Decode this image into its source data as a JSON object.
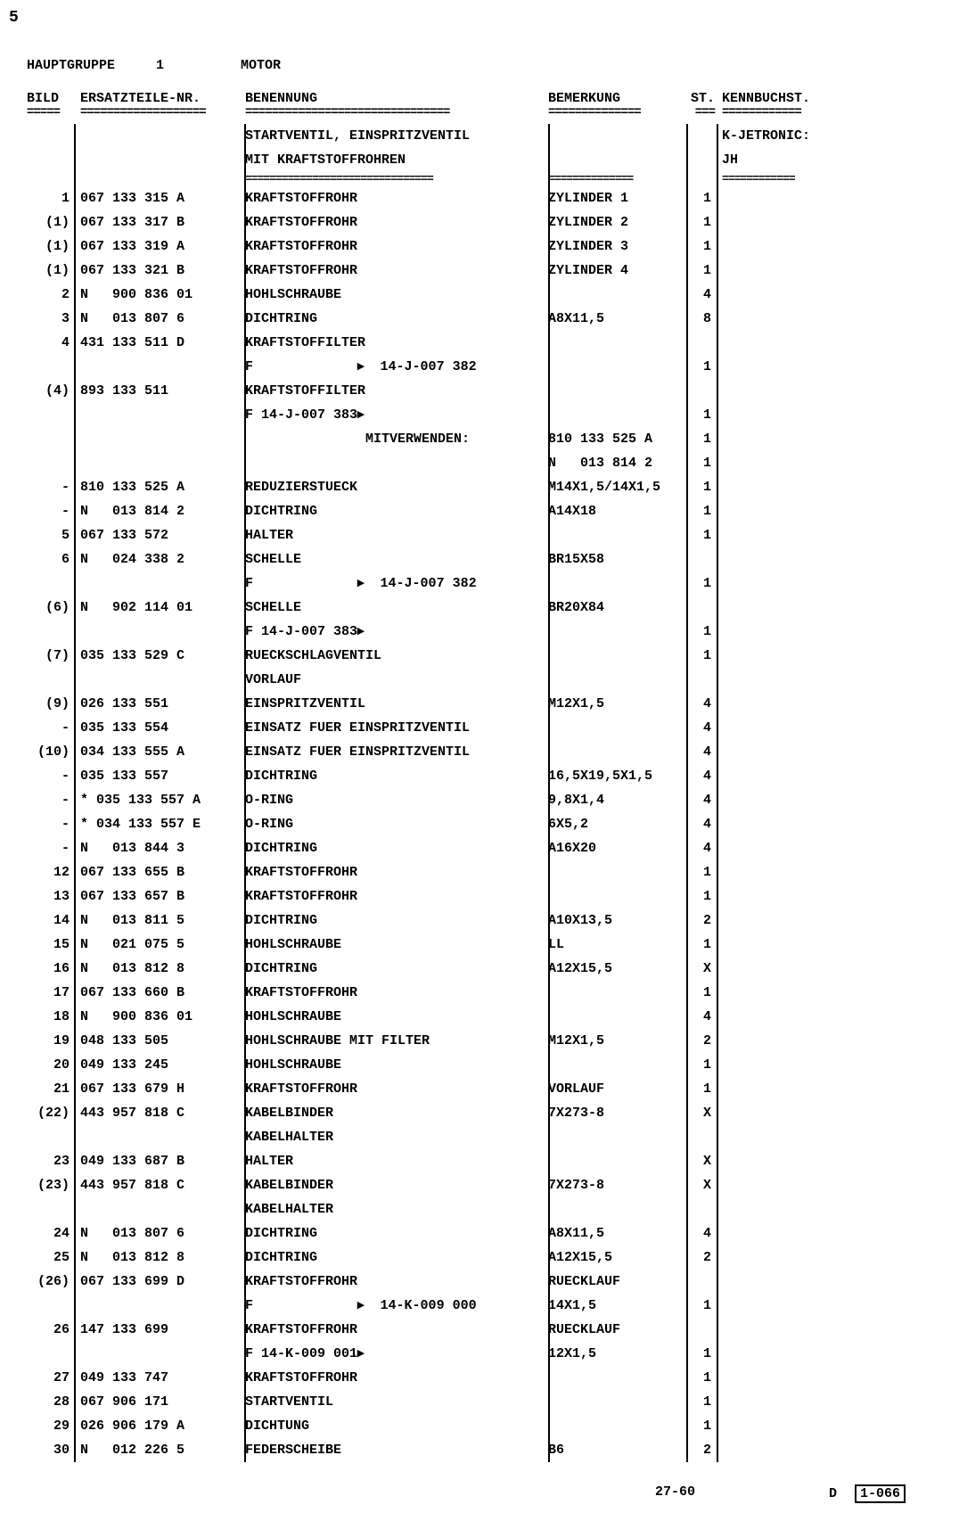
{
  "page_num_top": "5",
  "header": {
    "hauptgruppe_label": "HAUPTGRUPPE",
    "hauptgruppe_num": "1",
    "motor_label": "MOTOR"
  },
  "columns": {
    "bild": "BILD",
    "ersatz": "ERSATZTEILE-NR.",
    "benennung": "BENENNUNG",
    "bemerkung": "BEMERKUNG",
    "st": "ST.",
    "kennbuchst": "KENNBUCHST."
  },
  "section_header": {
    "line1": "STARTVENTIL, EINSPRITZVENTIL",
    "line2": "MIT KRAFTSTOFFROHREN",
    "kenn1": "K-JETRONIC:",
    "kenn2": "JH"
  },
  "rows": [
    {
      "bild": "1",
      "ersatz": "067 133 315 A",
      "benennung": "KRAFTSTOFFROHR",
      "bemerkung": "ZYLINDER 1",
      "st": "1",
      "kenn": ""
    },
    {
      "bild": "(1)",
      "ersatz": "067 133 317 B",
      "benennung": "KRAFTSTOFFROHR",
      "bemerkung": "ZYLINDER 2",
      "st": "1",
      "kenn": ""
    },
    {
      "bild": "(1)",
      "ersatz": "067 133 319 A",
      "benennung": "KRAFTSTOFFROHR",
      "bemerkung": "ZYLINDER 3",
      "st": "1",
      "kenn": ""
    },
    {
      "bild": "(1)",
      "ersatz": "067 133 321 B",
      "benennung": "KRAFTSTOFFROHR",
      "bemerkung": "ZYLINDER 4",
      "st": "1",
      "kenn": ""
    },
    {
      "bild": "2",
      "ersatz": "N   900 836 01",
      "benennung": "HOHLSCHRAUBE",
      "bemerkung": "",
      "st": "4",
      "kenn": ""
    },
    {
      "bild": "3",
      "ersatz": "N   013 807 6",
      "benennung": "DICHTRING",
      "bemerkung": "A8X11,5",
      "st": "8",
      "kenn": ""
    },
    {
      "bild": "4",
      "ersatz": "431 133 511 D",
      "benennung": "KRAFTSTOFFILTER",
      "bemerkung": "",
      "st": "",
      "kenn": ""
    },
    {
      "bild": "",
      "ersatz": "",
      "benennung": "F             ▸  14-J-007 382",
      "bemerkung": "",
      "st": "1",
      "kenn": ""
    },
    {
      "bild": "(4)",
      "ersatz": "893 133 511",
      "benennung": "KRAFTSTOFFILTER",
      "bemerkung": "",
      "st": "",
      "kenn": ""
    },
    {
      "bild": "",
      "ersatz": "",
      "benennung": "F 14-J-007 383▸",
      "bemerkung": "",
      "st": "1",
      "kenn": ""
    },
    {
      "bild": "",
      "ersatz": "",
      "benennung": "               MITVERWENDEN:",
      "bemerkung": "810 133 525 A",
      "st": "1",
      "kenn": ""
    },
    {
      "bild": "",
      "ersatz": "",
      "benennung": "",
      "bemerkung": "N   013 814 2",
      "st": "1",
      "kenn": ""
    },
    {
      "bild": "-",
      "ersatz": "810 133 525 A",
      "benennung": "REDUZIERSTUECK",
      "bemerkung": "M14X1,5/14X1,5",
      "st": "1",
      "kenn": ""
    },
    {
      "bild": "-",
      "ersatz": "N   013 814 2",
      "benennung": "DICHTRING",
      "bemerkung": "A14X18",
      "st": "1",
      "kenn": ""
    },
    {
      "bild": "5",
      "ersatz": "067 133 572",
      "benennung": "HALTER",
      "bemerkung": "",
      "st": "1",
      "kenn": ""
    },
    {
      "bild": "6",
      "ersatz": "N   024 338 2",
      "benennung": "SCHELLE",
      "bemerkung": "BR15X58",
      "st": "",
      "kenn": ""
    },
    {
      "bild": "",
      "ersatz": "",
      "benennung": "F             ▸  14-J-007 382",
      "bemerkung": "",
      "st": "1",
      "kenn": ""
    },
    {
      "bild": "(6)",
      "ersatz": "N   902 114 01",
      "benennung": "SCHELLE",
      "bemerkung": "BR20X84",
      "st": "",
      "kenn": ""
    },
    {
      "bild": "",
      "ersatz": "",
      "benennung": "F 14-J-007 383▸",
      "bemerkung": "",
      "st": "1",
      "kenn": ""
    },
    {
      "bild": "(7)",
      "ersatz": "035 133 529 C",
      "benennung": "RUECKSCHLAGVENTIL",
      "bemerkung": "",
      "st": "1",
      "kenn": ""
    },
    {
      "bild": "",
      "ersatz": "",
      "benennung": "VORLAUF",
      "bemerkung": "",
      "st": "",
      "kenn": ""
    },
    {
      "bild": "(9)",
      "ersatz": "026 133 551",
      "benennung": "EINSPRITZVENTIL",
      "bemerkung": "M12X1,5",
      "st": "4",
      "kenn": ""
    },
    {
      "bild": "-",
      "ersatz": "035 133 554",
      "benennung": "EINSATZ FUER EINSPRITZVENTIL",
      "bemerkung": "",
      "st": "4",
      "kenn": ""
    },
    {
      "bild": "(10)",
      "ersatz": "034 133 555 A",
      "benennung": "EINSATZ FUER EINSPRITZVENTIL",
      "bemerkung": "",
      "st": "4",
      "kenn": ""
    },
    {
      "bild": "-",
      "ersatz": "035 133 557",
      "benennung": "DICHTRING",
      "bemerkung": "16,5X19,5X1,5",
      "st": "4",
      "kenn": ""
    },
    {
      "bild": "-",
      "ersatz": "* 035 133 557 A",
      "benennung": "O-RING",
      "bemerkung": "9,8X1,4",
      "st": "4",
      "kenn": ""
    },
    {
      "bild": "-",
      "ersatz": "* 034 133 557 E",
      "benennung": "O-RING",
      "bemerkung": "6X5,2",
      "st": "4",
      "kenn": ""
    },
    {
      "bild": "-",
      "ersatz": "N   013 844 3",
      "benennung": "DICHTRING",
      "bemerkung": "A16X20",
      "st": "4",
      "kenn": ""
    },
    {
      "bild": "12",
      "ersatz": "067 133 655 B",
      "benennung": "KRAFTSTOFFROHR",
      "bemerkung": "",
      "st": "1",
      "kenn": ""
    },
    {
      "bild": "13",
      "ersatz": "067 133 657 B",
      "benennung": "KRAFTSTOFFROHR",
      "bemerkung": "",
      "st": "1",
      "kenn": ""
    },
    {
      "bild": "14",
      "ersatz": "N   013 811 5",
      "benennung": "DICHTRING",
      "bemerkung": "A10X13,5",
      "st": "2",
      "kenn": ""
    },
    {
      "bild": "15",
      "ersatz": "N   021 075 5",
      "benennung": "HOHLSCHRAUBE",
      "bemerkung": "LL",
      "st": "1",
      "kenn": ""
    },
    {
      "bild": "16",
      "ersatz": "N   013 812 8",
      "benennung": "DICHTRING",
      "bemerkung": "A12X15,5",
      "st": "X",
      "kenn": ""
    },
    {
      "bild": "17",
      "ersatz": "067 133 660 B",
      "benennung": "KRAFTSTOFFROHR",
      "bemerkung": "",
      "st": "1",
      "kenn": ""
    },
    {
      "bild": "18",
      "ersatz": "N   900 836 01",
      "benennung": "HOHLSCHRAUBE",
      "bemerkung": "",
      "st": "4",
      "kenn": ""
    },
    {
      "bild": "19",
      "ersatz": "048 133 505",
      "benennung": "HOHLSCHRAUBE MIT FILTER",
      "bemerkung": "M12X1,5",
      "st": "2",
      "kenn": ""
    },
    {
      "bild": "20",
      "ersatz": "049 133 245",
      "benennung": "HOHLSCHRAUBE",
      "bemerkung": "",
      "st": "1",
      "kenn": ""
    },
    {
      "bild": "21",
      "ersatz": "067 133 679 H",
      "benennung": "KRAFTSTOFFROHR",
      "bemerkung": "VORLAUF",
      "st": "1",
      "kenn": ""
    },
    {
      "bild": "(22)",
      "ersatz": "443 957 818 C",
      "benennung": "KABELBINDER",
      "bemerkung": "7X273-8",
      "st": "X",
      "kenn": ""
    },
    {
      "bild": "",
      "ersatz": "",
      "benennung": "KABELHALTER",
      "bemerkung": "",
      "st": "",
      "kenn": ""
    },
    {
      "bild": "23",
      "ersatz": "049 133 687 B",
      "benennung": "HALTER",
      "bemerkung": "",
      "st": "X",
      "kenn": ""
    },
    {
      "bild": "(23)",
      "ersatz": "443 957 818 C",
      "benennung": "KABELBINDER",
      "bemerkung": "7X273-8",
      "st": "X",
      "kenn": ""
    },
    {
      "bild": "",
      "ersatz": "",
      "benennung": "KABELHALTER",
      "bemerkung": "",
      "st": "",
      "kenn": ""
    },
    {
      "bild": "24",
      "ersatz": "N   013 807 6",
      "benennung": "DICHTRING",
      "bemerkung": "A8X11,5",
      "st": "4",
      "kenn": ""
    },
    {
      "bild": "25",
      "ersatz": "N   013 812 8",
      "benennung": "DICHTRING",
      "bemerkung": "A12X15,5",
      "st": "2",
      "kenn": ""
    },
    {
      "bild": "(26)",
      "ersatz": "067 133 699 D",
      "benennung": "KRAFTSTOFFROHR",
      "bemerkung": "RUECKLAUF",
      "st": "",
      "kenn": ""
    },
    {
      "bild": "",
      "ersatz": "",
      "benennung": "F             ▸  14-K-009 000",
      "bemerkung": "14X1,5",
      "st": "1",
      "kenn": ""
    },
    {
      "bild": "26",
      "ersatz": "147 133 699",
      "benennung": "KRAFTSTOFFROHR",
      "bemerkung": "RUECKLAUF",
      "st": "",
      "kenn": ""
    },
    {
      "bild": "",
      "ersatz": "",
      "benennung": "F 14-K-009 001▸",
      "bemerkung": "12X1,5",
      "st": "1",
      "kenn": ""
    },
    {
      "bild": "27",
      "ersatz": "049 133 747",
      "benennung": "KRAFTSTOFFROHR",
      "bemerkung": "",
      "st": "1",
      "kenn": ""
    },
    {
      "bild": "28",
      "ersatz": "067 906 171",
      "benennung": "STARTVENTIL",
      "bemerkung": "",
      "st": "1",
      "kenn": ""
    },
    {
      "bild": "29",
      "ersatz": "026 906 179 A",
      "benennung": "DICHTUNG",
      "bemerkung": "",
      "st": "1",
      "kenn": ""
    },
    {
      "bild": "30",
      "ersatz": "N   012 226 5",
      "benennung": "FEDERSCHEIBE",
      "bemerkung": "B6",
      "st": "2",
      "kenn": ""
    }
  ],
  "footer": {
    "page": "27-60",
    "code_d": "D",
    "code_box": "1-066"
  }
}
